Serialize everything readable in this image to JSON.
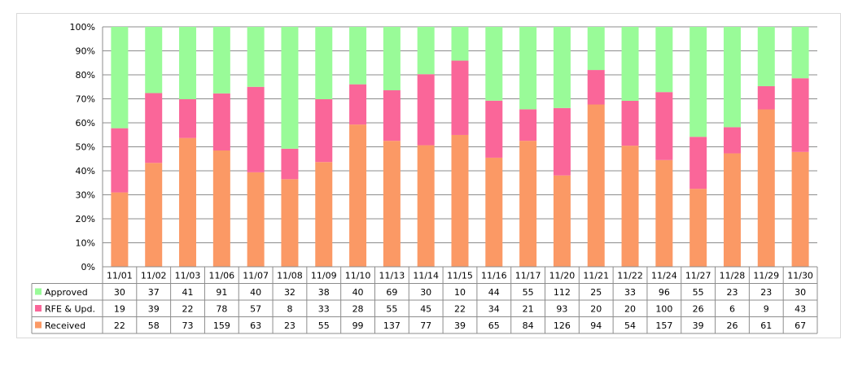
{
  "chart_data": {
    "type": "bar",
    "stacked": true,
    "normalized": "percent",
    "categories": [
      "11/01",
      "11/02",
      "11/03",
      "11/06",
      "11/07",
      "11/08",
      "11/09",
      "11/10",
      "11/13",
      "11/14",
      "11/15",
      "11/16",
      "11/17",
      "11/20",
      "11/21",
      "11/22",
      "11/24",
      "11/27",
      "11/28",
      "11/29",
      "11/30"
    ],
    "series": [
      {
        "name": "Received",
        "color": "#fb9965",
        "values": [
          22,
          58,
          73,
          159,
          63,
          23,
          55,
          99,
          137,
          77,
          39,
          65,
          84,
          126,
          94,
          54,
          157,
          39,
          26,
          61,
          67
        ]
      },
      {
        "name": "RFE & Upd.",
        "color": "#fa6699",
        "values": [
          19,
          39,
          22,
          78,
          57,
          8,
          33,
          28,
          55,
          45,
          22,
          34,
          21,
          93,
          20,
          20,
          100,
          26,
          6,
          9,
          43
        ]
      },
      {
        "name": "Approved",
        "color": "#99fb98",
        "values": [
          30,
          37,
          41,
          91,
          40,
          32,
          38,
          40,
          69,
          30,
          10,
          44,
          55,
          112,
          25,
          33,
          96,
          55,
          23,
          23,
          30
        ]
      }
    ],
    "data_table_order": [
      "Approved",
      "RFE & Upd.",
      "Received"
    ],
    "ylim": [
      0,
      100
    ],
    "yticks": [
      "0%",
      "10%",
      "20%",
      "30%",
      "40%",
      "50%",
      "60%",
      "70%",
      "80%",
      "90%",
      "100%"
    ],
    "grid": true,
    "legend": "data-table-left"
  }
}
